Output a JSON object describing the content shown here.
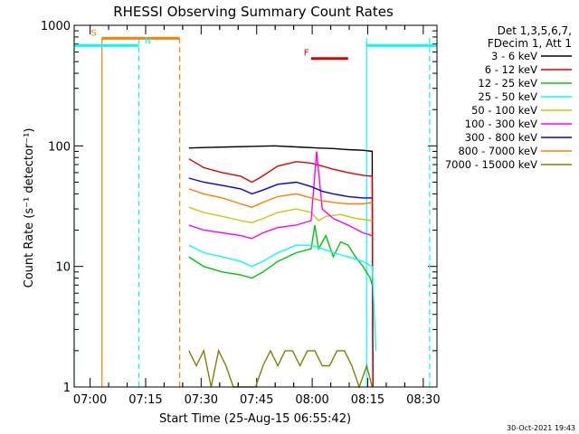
{
  "chart_data": {
    "type": "line",
    "title": "RHESSI Observing Summary Count Rates",
    "xlabel": "Start Time (25-Aug-15 06:55:42)",
    "ylabel": "Count Rate (s⁻¹ detector⁻¹)",
    "x_unit": "minutes since 06:55:42",
    "xlim": [
      0,
      98
    ],
    "ylim": [
      1,
      1000
    ],
    "yscale": "log",
    "x_ticks": [
      {
        "value": 4.3,
        "label": "07:00"
      },
      {
        "value": 19.3,
        "label": "07:15"
      },
      {
        "value": 34.3,
        "label": "07:30"
      },
      {
        "value": 49.3,
        "label": "07:45"
      },
      {
        "value": 64.3,
        "label": "08:00"
      },
      {
        "value": 79.3,
        "label": "08:15"
      },
      {
        "value": 94.3,
        "label": "08:30"
      }
    ],
    "y_ticks": [
      {
        "value": 1,
        "label": "1"
      },
      {
        "value": 10,
        "label": "10"
      },
      {
        "value": 100,
        "label": "100"
      },
      {
        "value": 1000,
        "label": "1000"
      }
    ],
    "legend_header": [
      "Det 1,3,5,6,7,",
      "FDecim 1, Att 1"
    ],
    "legend_position": "right",
    "footer_timestamp": "30-Oct-2021 19:43",
    "series": [
      {
        "name": "3 - 6 keV",
        "color": "#000000",
        "x": [
          31,
          36,
          42,
          48,
          54,
          60,
          66,
          70,
          74,
          78,
          80.5,
          80.7
        ],
        "y": [
          96,
          97,
          98,
          99,
          100,
          98,
          96,
          95,
          93,
          92,
          90,
          1
        ]
      },
      {
        "name": "6 - 12 keV",
        "color": "#e00000",
        "x": [
          31,
          35,
          40,
          45,
          48,
          50,
          55,
          60,
          64,
          67,
          70,
          74,
          78,
          80.5,
          80.7
        ],
        "y": [
          78,
          66,
          60,
          56,
          50,
          54,
          68,
          74,
          72,
          68,
          64,
          60,
          57,
          56,
          1
        ]
      },
      {
        "name": "12 - 25 keV",
        "color": "#00c800",
        "x": [
          31,
          35,
          40,
          45,
          48,
          51,
          55,
          60,
          64,
          65,
          66,
          68,
          70,
          72,
          74,
          76,
          78,
          80,
          80.5
        ],
        "y": [
          12,
          10,
          9,
          8.5,
          8,
          9,
          11,
          13,
          14,
          22,
          14,
          18,
          12,
          16,
          15,
          12,
          10,
          8,
          7
        ]
      },
      {
        "name": "25 - 50 keV",
        "color": "#00ffff",
        "x": [
          31,
          35,
          40,
          45,
          48,
          51,
          55,
          60,
          64,
          67,
          70,
          74,
          78,
          80.5,
          81.5
        ],
        "y": [
          15,
          13,
          12,
          11,
          10,
          11,
          13,
          15,
          15,
          14,
          13,
          12,
          11,
          10,
          2
        ]
      },
      {
        "name": "50 - 100 keV",
        "color": "#c8c800",
        "x": [
          31,
          35,
          40,
          45,
          48,
          51,
          55,
          60,
          64,
          66,
          68,
          72,
          76,
          80.5
        ],
        "y": [
          31,
          28,
          26,
          24,
          23,
          25,
          28,
          30,
          28,
          24,
          26,
          27,
          25,
          24
        ]
      },
      {
        "name": "100 - 300 keV",
        "color": "#ff00ff",
        "x": [
          31,
          35,
          40,
          45,
          48,
          51,
          55,
          60,
          64,
          65.5,
          67,
          70,
          74,
          78,
          80.5
        ],
        "y": [
          22,
          20,
          19,
          18,
          17,
          19,
          21,
          22,
          24,
          90,
          30,
          25,
          22,
          19,
          18
        ]
      },
      {
        "name": "300 - 800 keV",
        "color": "#0000e6",
        "x": [
          31,
          35,
          40,
          45,
          48,
          51,
          55,
          60,
          64,
          67,
          70,
          74,
          78,
          80.5
        ],
        "y": [
          54,
          50,
          47,
          44,
          40,
          43,
          48,
          50,
          46,
          42,
          40,
          38,
          37,
          37
        ]
      },
      {
        "name": "800 - 7000 keV",
        "color": "#ff8000",
        "x": [
          31,
          35,
          40,
          45,
          48,
          51,
          55,
          60,
          64,
          67,
          70,
          74,
          78,
          80.5
        ],
        "y": [
          44,
          40,
          37,
          33,
          31,
          34,
          38,
          40,
          37,
          35,
          34,
          33,
          33,
          34
        ]
      },
      {
        "name": "7000 - 15000 keV",
        "color": "#808000",
        "x": [
          31,
          33,
          35,
          37,
          39,
          41,
          43,
          45,
          47,
          49,
          51,
          53,
          55,
          57,
          59,
          61,
          63,
          65,
          67,
          69,
          71,
          73,
          75,
          77,
          79,
          80.5
        ],
        "y": [
          2,
          1.5,
          2,
          1,
          2,
          1.5,
          1,
          1,
          1,
          1,
          1.5,
          2,
          1.5,
          2,
          2,
          1.5,
          2,
          2,
          1.5,
          1.5,
          2,
          2,
          1.5,
          1,
          1.5,
          1
        ]
      }
    ],
    "markers": [
      {
        "label": "S",
        "color": "#ff8000",
        "x_start": 7.5,
        "x_end": 28.5,
        "y": 780
      },
      {
        "label": "N",
        "color": "#00ffff",
        "x_start": 0,
        "x_end": 17.5,
        "y": 680
      },
      {
        "label": "N",
        "color": "#00ffff",
        "x_start": 79,
        "x_end": 98,
        "y": 680
      },
      {
        "label": "F",
        "color": "#e00000",
        "x_start": 64,
        "x_end": 74,
        "y": 530
      }
    ],
    "marker_labels": [
      {
        "text": "S",
        "color": "#ff8000",
        "x": 4.5,
        "y": 820
      },
      {
        "text": "N",
        "color": "#00ffff",
        "x": 19,
        "y": 700
      },
      {
        "text": "F",
        "color": "#e00000",
        "x": 62,
        "y": 560
      }
    ],
    "vertical_lines": [
      {
        "x": 0,
        "color": "#00ffff",
        "dash": false
      },
      {
        "x": 7.5,
        "color": "#ff8000",
        "dash": false
      },
      {
        "x": 17.5,
        "color": "#00ffff",
        "dash": true
      },
      {
        "x": 28.5,
        "color": "#ff8000",
        "dash": true
      },
      {
        "x": 79,
        "color": "#00ffff",
        "dash": false
      },
      {
        "x": 96,
        "color": "#00ffff",
        "dash": true
      }
    ]
  }
}
